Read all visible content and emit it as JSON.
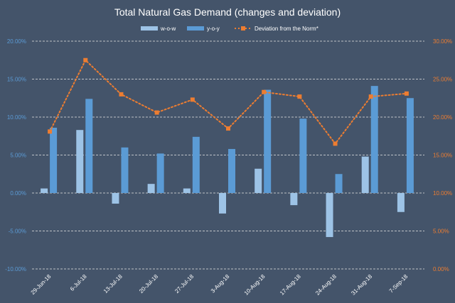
{
  "chart_data": {
    "type": "bar",
    "title": "Total Natural Gas Demand (changes and deviation)",
    "categories": [
      "29-Jun-18",
      "6-Jul-18",
      "13-Jul-18",
      "20-Jul-18",
      "27-Jul-18",
      "3-Aug-18",
      "10-Aug-18",
      "17-Aug-18",
      "24-Aug-18",
      "31-Aug-18",
      "7-Sep-18"
    ],
    "series": [
      {
        "name": "w-o-w",
        "type": "bar",
        "axis": "left",
        "color": "#9dc3e6",
        "values": [
          0.6,
          8.3,
          -1.4,
          1.2,
          0.6,
          -2.7,
          3.2,
          -1.6,
          -5.8,
          4.8,
          -2.5
        ]
      },
      {
        "name": "y-o-y",
        "type": "bar",
        "axis": "left",
        "color": "#5b9bd5",
        "values": [
          8.6,
          12.4,
          6.0,
          5.2,
          7.4,
          5.8,
          13.6,
          9.8,
          2.5,
          14.1,
          12.5
        ]
      },
      {
        "name": "Deviation from the Norm*",
        "type": "line",
        "axis": "right",
        "color": "#ed7d31",
        "values": [
          18.1,
          27.5,
          23.0,
          20.6,
          22.3,
          18.5,
          23.3,
          22.7,
          16.5,
          22.7,
          23.1
        ]
      }
    ],
    "y_left": {
      "min": -10,
      "max": 20,
      "step": 5,
      "ticks": [
        "-10.00%",
        "-5.00%",
        "0.00%",
        "5.00%",
        "10.00%",
        "15.00%",
        "20.00%"
      ]
    },
    "y_right": {
      "min": 0,
      "max": 30,
      "step": 5,
      "ticks": [
        "0.00%",
        "5.00%",
        "10.00%",
        "15.00%",
        "20.00%",
        "25.00%",
        "30.00%"
      ]
    },
    "grid": true,
    "legend_position": "top"
  }
}
